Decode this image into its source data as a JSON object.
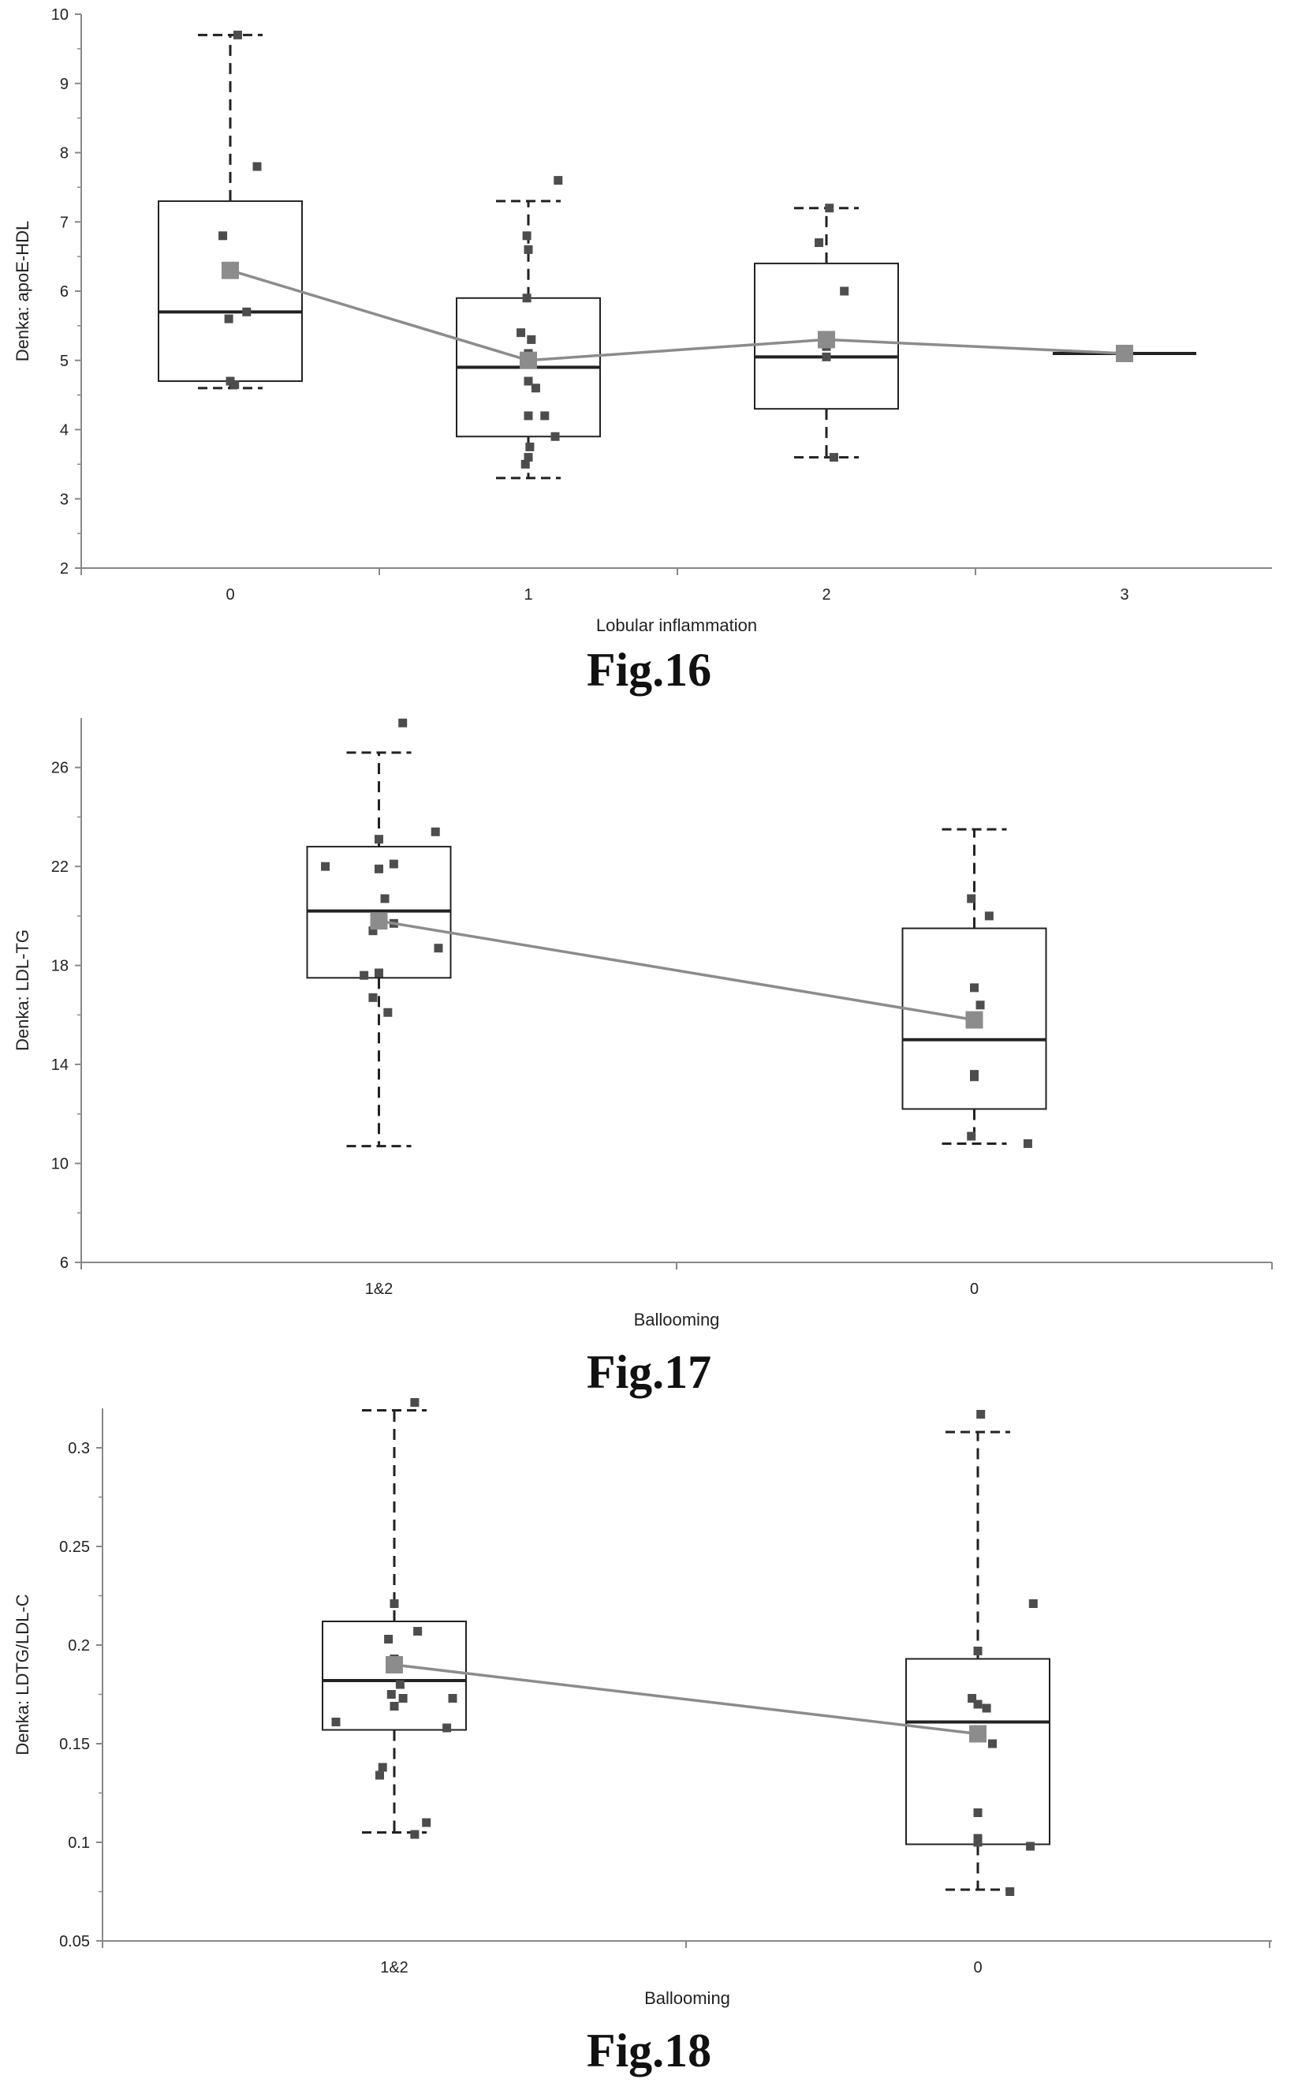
{
  "chart_data": [
    {
      "type": "box",
      "figure_label": "Fig.16",
      "xlabel": "Lobular inflammation",
      "ylabel": "Denka: apoE-HDL",
      "categories": [
        "0",
        "1",
        "2",
        "3"
      ],
      "ylim": [
        2,
        10
      ],
      "yticks": [
        "2",
        "3",
        "4",
        "5",
        "6",
        "7",
        "8",
        "9",
        "10"
      ],
      "boxes": [
        {
          "whisker_low": 4.6,
          "q1": 4.7,
          "median": 5.7,
          "q3": 7.3,
          "whisker_high": 9.7
        },
        {
          "whisker_low": 3.3,
          "q1": 3.9,
          "median": 4.9,
          "q3": 5.9,
          "whisker_high": 7.3
        },
        {
          "whisker_low": 3.6,
          "q1": 4.3,
          "median": 5.05,
          "q3": 6.4,
          "whisker_high": 7.2
        },
        {
          "whisker_low": 5.1,
          "q1": 5.1,
          "median": 5.1,
          "q3": 5.1,
          "whisker_high": 5.1
        }
      ],
      "means": [
        6.3,
        5.0,
        5.3,
        5.1
      ],
      "points": [
        [
          [
            0.05,
            9.7
          ],
          [
            0.18,
            7.8
          ],
          [
            -0.05,
            6.8
          ],
          [
            -0.01,
            5.6
          ],
          [
            0.11,
            5.7
          ],
          [
            0.0,
            4.7
          ],
          [
            0.03,
            4.65
          ]
        ],
        [
          [
            0.2,
            7.6
          ],
          [
            -0.01,
            6.8
          ],
          [
            0.0,
            6.6
          ],
          [
            -0.01,
            5.9
          ],
          [
            -0.05,
            5.4
          ],
          [
            0.02,
            5.3
          ],
          [
            0.0,
            5.1
          ],
          [
            0.0,
            4.7
          ],
          [
            0.05,
            4.6
          ],
          [
            0.11,
            4.2
          ],
          [
            0.0,
            4.2
          ],
          [
            0.18,
            3.9
          ],
          [
            0.01,
            3.75
          ],
          [
            0.0,
            3.6
          ],
          [
            -0.02,
            3.5
          ]
        ],
        [
          [
            0.02,
            7.2
          ],
          [
            -0.05,
            6.7
          ],
          [
            0.12,
            6.0
          ],
          [
            0.0,
            5.2
          ],
          [
            0.0,
            5.05
          ],
          [
            0.05,
            3.6
          ]
        ],
        [
          [
            0.0,
            5.1
          ]
        ]
      ]
    },
    {
      "type": "box",
      "figure_label": "Fig.17",
      "xlabel": "Ballooming",
      "ylabel": "Denka: LDL-TG",
      "categories": [
        "1&2",
        "0"
      ],
      "ylim": [
        6,
        28
      ],
      "yticks": [
        "6",
        "10",
        "14",
        "18",
        "22",
        "26"
      ],
      "boxes": [
        {
          "whisker_low": 10.7,
          "q1": 17.5,
          "median": 20.2,
          "q3": 22.8,
          "whisker_high": 26.6
        },
        {
          "whisker_low": 10.8,
          "q1": 12.2,
          "median": 15.0,
          "q3": 19.5,
          "whisker_high": 23.5
        }
      ],
      "means": [
        19.8,
        15.8
      ],
      "points": [
        [
          [
            0.08,
            27.8
          ],
          [
            0.19,
            23.4
          ],
          [
            0.0,
            23.1
          ],
          [
            0.05,
            22.1
          ],
          [
            -0.18,
            22.0
          ],
          [
            0.0,
            21.9
          ],
          [
            0.02,
            20.7
          ],
          [
            0.05,
            19.7
          ],
          [
            -0.02,
            19.4
          ],
          [
            0.2,
            18.7
          ],
          [
            -0.05,
            17.6
          ],
          [
            0.0,
            17.7
          ],
          [
            -0.02,
            16.7
          ],
          [
            0.03,
            16.1
          ]
        ],
        [
          [
            0.05,
            20.0
          ],
          [
            -0.01,
            20.7
          ],
          [
            0.0,
            17.1
          ],
          [
            0.02,
            16.4
          ],
          [
            0.0,
            13.6
          ],
          [
            0.0,
            13.5
          ],
          [
            -0.01,
            11.1
          ],
          [
            0.18,
            10.8
          ]
        ]
      ]
    },
    {
      "type": "box",
      "figure_label": "Fig.18",
      "xlabel": "Ballooming",
      "ylabel": "Denka: LDTG/LDL-C",
      "categories": [
        "1&2",
        "0"
      ],
      "ylim": [
        0.05,
        0.32
      ],
      "yticks": [
        "0.05",
        "0.1",
        "0.15",
        "0.2",
        "0.25",
        "0.3"
      ],
      "boxes": [
        {
          "whisker_low": 0.105,
          "q1": 0.157,
          "median": 0.182,
          "q3": 0.212,
          "whisker_high": 0.319
        },
        {
          "whisker_low": 0.076,
          "q1": 0.099,
          "median": 0.161,
          "q3": 0.193,
          "whisker_high": 0.308
        }
      ],
      "means": [
        0.19,
        0.155
      ],
      "points": [
        [
          [
            0.07,
            0.323
          ],
          [
            0.0,
            0.221
          ],
          [
            0.08,
            0.207
          ],
          [
            -0.02,
            0.203
          ],
          [
            0.0,
            0.193
          ],
          [
            0.02,
            0.18
          ],
          [
            -0.01,
            0.175
          ],
          [
            0.03,
            0.173
          ],
          [
            0.2,
            0.173
          ],
          [
            0.0,
            0.169
          ],
          [
            0.18,
            0.158
          ],
          [
            -0.2,
            0.161
          ],
          [
            -0.04,
            0.138
          ],
          [
            -0.05,
            0.134
          ],
          [
            0.11,
            0.11
          ],
          [
            0.07,
            0.104
          ]
        ],
        [
          [
            0.01,
            0.317
          ],
          [
            0.19,
            0.221
          ],
          [
            0.0,
            0.197
          ],
          [
            -0.02,
            0.173
          ],
          [
            0.0,
            0.17
          ],
          [
            0.03,
            0.168
          ],
          [
            0.05,
            0.15
          ],
          [
            0.0,
            0.115
          ],
          [
            0.0,
            0.102
          ],
          [
            0.0,
            0.1
          ],
          [
            0.18,
            0.098
          ],
          [
            0.11,
            0.075
          ]
        ]
      ]
    }
  ],
  "colors": {
    "axis": "#888888",
    "box": "#222222",
    "point": "#4d4d4d",
    "mean": "#8c8c8c",
    "mean_line": "#8c8c8c"
  }
}
